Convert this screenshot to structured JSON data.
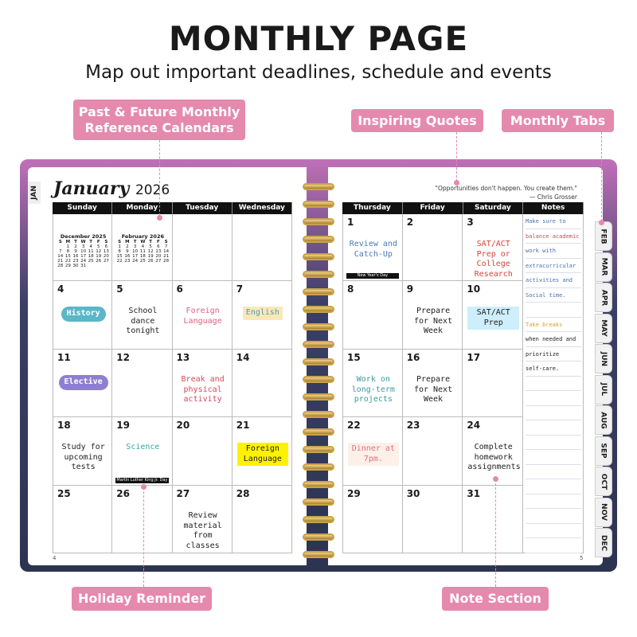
{
  "header": {
    "title": "MONTHLY PAGE",
    "subtitle": "Map out important deadlines, schedule and events"
  },
  "callouts": {
    "reference": "Past & Future Monthly Reference Calendars",
    "quotes": "Inspiring Quotes",
    "tabs": "Monthly Tabs",
    "holiday": "Holiday Reminder",
    "notes": "Note Section"
  },
  "colors": {
    "accent": "#e589ad",
    "header_bar": "#111111",
    "ring": "#c9a24a"
  },
  "planner": {
    "month": "January",
    "year": "2026",
    "quote": "\"Opportunities don't happen. You create them.\"",
    "quote_author": "— Chris Grosser",
    "left_days": [
      "Sunday",
      "Monday",
      "Tuesday",
      "Wednesday"
    ],
    "right_days": [
      "Thursday",
      "Friday",
      "Saturday",
      "Notes"
    ],
    "mini_calendars": [
      {
        "title": "December 2025",
        "weekdays": [
          "S",
          "M",
          "T",
          "W",
          "T",
          "F",
          "S"
        ],
        "weeks": [
          [
            "",
            "1",
            "2",
            "3",
            "4",
            "5",
            "6"
          ],
          [
            "7",
            "8",
            "9",
            "10",
            "11",
            "12",
            "13"
          ],
          [
            "14",
            "15",
            "16",
            "17",
            "18",
            "19",
            "20"
          ],
          [
            "21",
            "22",
            "23",
            "24",
            "25",
            "26",
            "27"
          ],
          [
            "28",
            "29",
            "30",
            "31",
            "",
            "",
            ""
          ]
        ]
      },
      {
        "title": "February 2026",
        "weekdays": [
          "S",
          "M",
          "T",
          "W",
          "T",
          "F",
          "S"
        ],
        "weeks": [
          [
            "1",
            "2",
            "3",
            "4",
            "5",
            "6",
            "7"
          ],
          [
            "8",
            "9",
            "10",
            "11",
            "12",
            "13",
            "14"
          ],
          [
            "15",
            "16",
            "17",
            "18",
            "19",
            "20",
            "21"
          ],
          [
            "22",
            "23",
            "24",
            "25",
            "26",
            "27",
            "28"
          ]
        ]
      }
    ],
    "left_weeks": [
      [
        {
          "day": "",
          "mini": 0
        },
        {
          "day": "",
          "mini": 1
        },
        {
          "day": ""
        },
        {
          "day": ""
        }
      ],
      [
        {
          "day": "4",
          "note": "History",
          "color": "#5bb6c8",
          "sticker": true
        },
        {
          "day": "5",
          "note": "School dance tonight",
          "color": "#222"
        },
        {
          "day": "6",
          "note": "Foreign Language",
          "color": "#e0607e"
        },
        {
          "day": "7",
          "note": "English",
          "color": "#4a9fb5",
          "bg": "#fbe8b8"
        }
      ],
      [
        {
          "day": "11",
          "note": "Elective",
          "color": "#8e7fd0",
          "sticker": true
        },
        {
          "day": "12"
        },
        {
          "day": "13",
          "note": "Break and physical activity",
          "color": "#d44a5a"
        },
        {
          "day": "14"
        }
      ],
      [
        {
          "day": "18",
          "note": "Study for upcoming tests",
          "color": "#222"
        },
        {
          "day": "19",
          "note": "Science",
          "color": "#3aa8a0",
          "holiday": "Martin Luther King Jr. Day"
        },
        {
          "day": "20"
        },
        {
          "day": "21",
          "note": "Foreign Language",
          "color": "#222",
          "bg": "#fff200"
        }
      ],
      [
        {
          "day": "25"
        },
        {
          "day": "26"
        },
        {
          "day": "27",
          "note": "Review material from classes",
          "color": "#222"
        },
        {
          "day": "28"
        }
      ]
    ],
    "right_weeks": [
      [
        {
          "day": "1",
          "note": "Review and Catch-Up",
          "color": "#4a78b8",
          "holiday": "New Year's Day"
        },
        {
          "day": "2"
        },
        {
          "day": "3",
          "note": "SAT/ACT Prep or College Research",
          "color": "#d4463e"
        }
      ],
      [
        {
          "day": "8"
        },
        {
          "day": "9",
          "note": "Prepare for Next Week",
          "color": "#222"
        },
        {
          "day": "10",
          "note": "SAT/ACT Prep",
          "color": "#222",
          "bg": "#cdeefa"
        }
      ],
      [
        {
          "day": "15",
          "note": "Work on long-term projects",
          "color": "#3a9aa0"
        },
        {
          "day": "16",
          "note": "Prepare for Next Week",
          "color": "#222"
        },
        {
          "day": "17"
        }
      ],
      [
        {
          "day": "22",
          "note": "Dinner at 7pm.",
          "color": "#e0707e",
          "bg": "#fdf0e8"
        },
        {
          "day": "23"
        },
        {
          "day": "24",
          "note": "Complete homework assignments",
          "color": "#222"
        }
      ],
      [
        {
          "day": "29"
        },
        {
          "day": "30"
        },
        {
          "day": "31"
        }
      ]
    ],
    "notes": [
      "Make sure to",
      "balance academic",
      "work with",
      "extracurricular",
      "activities and",
      "Social time.",
      "",
      "Take breaks",
      "when needed and",
      "prioritize",
      "self-care.",
      "",
      "",
      "",
      "",
      "",
      "",
      "",
      "",
      "",
      "",
      "",
      ""
    ],
    "current_tab": "JAN",
    "tabs": [
      "FEB",
      "MAR",
      "APR",
      "MAY",
      "JUN",
      "JUL",
      "AUG",
      "SEP",
      "OCT",
      "NOV",
      "DEC"
    ],
    "page_left": "4",
    "page_right": "5"
  }
}
